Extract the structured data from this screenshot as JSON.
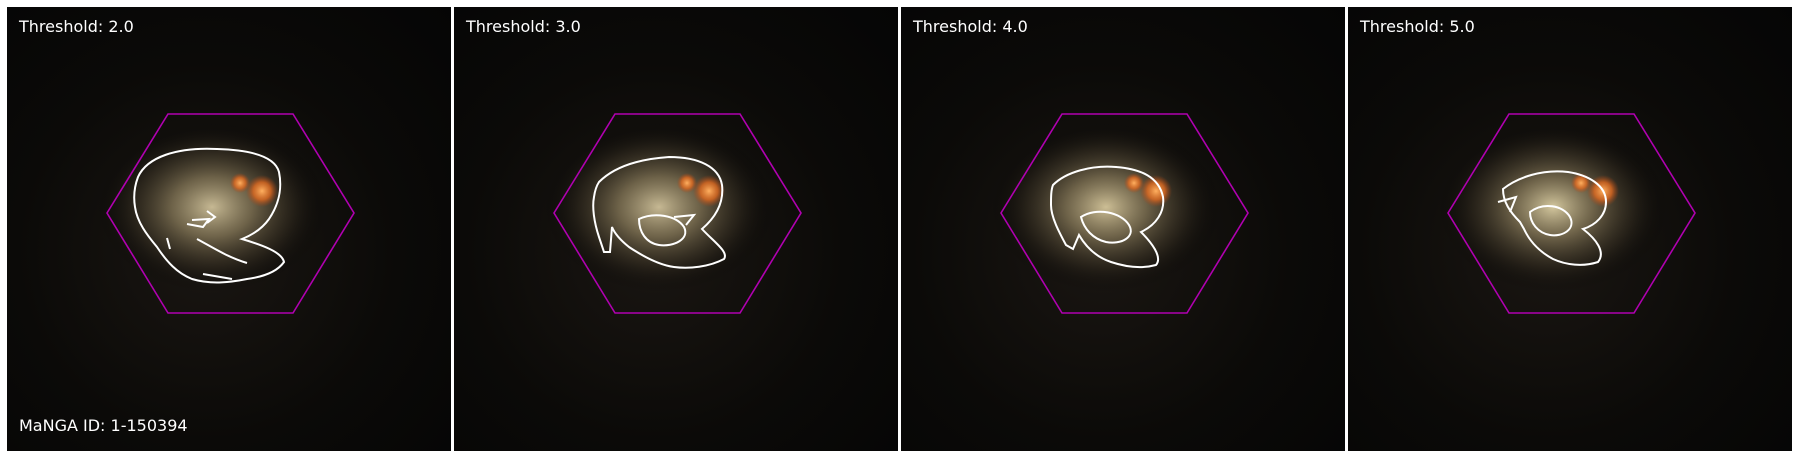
{
  "panels": [
    {
      "threshold_label": "Threshold: 2.0"
    },
    {
      "threshold_label": "Threshold: 3.0"
    },
    {
      "threshold_label": "Threshold: 4.0"
    },
    {
      "threshold_label": "Threshold: 5.0"
    }
  ],
  "manga_id_label": "MaNGA ID: 1-150394",
  "colors": {
    "hexagon": "#b000b0",
    "contour": "#ffffff",
    "background": "#000000"
  }
}
